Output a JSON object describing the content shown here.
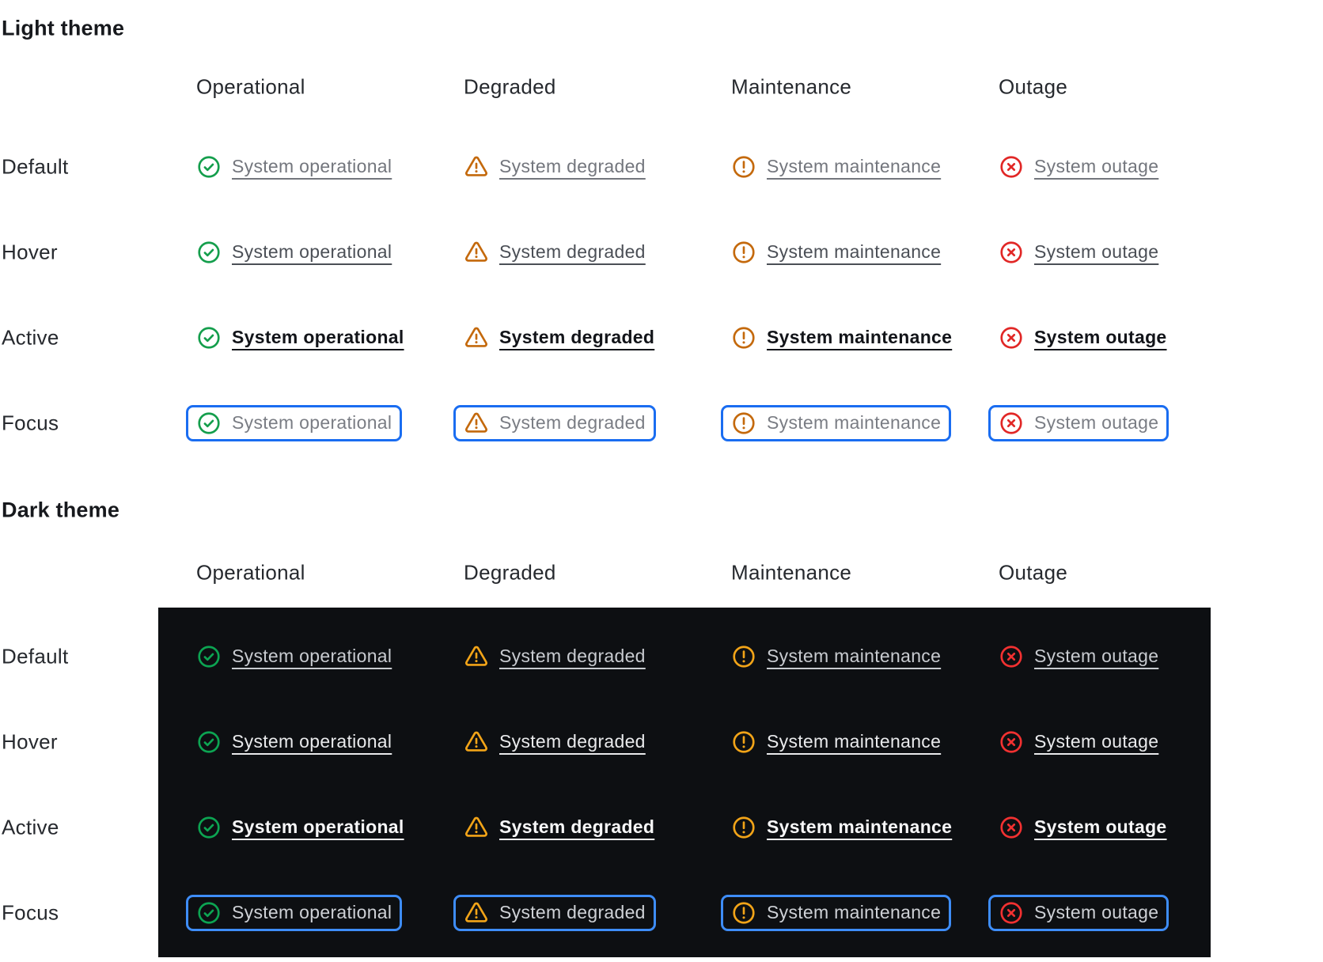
{
  "light_section": {
    "title": "Light theme"
  },
  "dark_section": {
    "title": "Dark theme"
  },
  "columns": [
    {
      "name": "operational",
      "label": "Operational",
      "icon": "check-circle-icon",
      "link_text": "System operational"
    },
    {
      "name": "degraded",
      "label": "Degraded",
      "icon": "warning-triangle-icon",
      "link_text": "System degraded"
    },
    {
      "name": "maintenance",
      "label": "Maintenance",
      "icon": "alert-circle-icon",
      "link_text": "System maintenance"
    },
    {
      "name": "outage",
      "label": "Outage",
      "icon": "x-circle-icon",
      "link_text": "System outage"
    }
  ],
  "states": [
    {
      "name": "default",
      "label": "Default"
    },
    {
      "name": "hover",
      "label": "Hover"
    },
    {
      "name": "active",
      "label": "Active"
    },
    {
      "name": "focus",
      "label": "Focus"
    }
  ],
  "colors": {
    "heading_text": "#17191D",
    "label_text": "#26292E",
    "light": {
      "background": "#FFFFFF",
      "icon_operational": "#149E4C",
      "icon_degraded": "#C4690C",
      "icon_maintenance": "#C4690C",
      "icon_outage": "#E12726",
      "text_default": "#73767D",
      "text_hover": "#4B4F56",
      "text_active": "#121419",
      "text_focus": "#7A7D84",
      "focus_ring": "#1A6DF1"
    },
    "dark": {
      "panel_background": "#0D0F12",
      "icon_operational": "#0CA452",
      "icon_degraded": "#F2A418",
      "icon_maintenance": "#F2A418",
      "icon_outage": "#F23131",
      "text_default": "#C8CBD0",
      "text_hover": "#E9EAEC",
      "text_active": "#F7F7F8",
      "text_focus": "#CED1D6",
      "focus_ring": "#3E8DF8"
    }
  }
}
